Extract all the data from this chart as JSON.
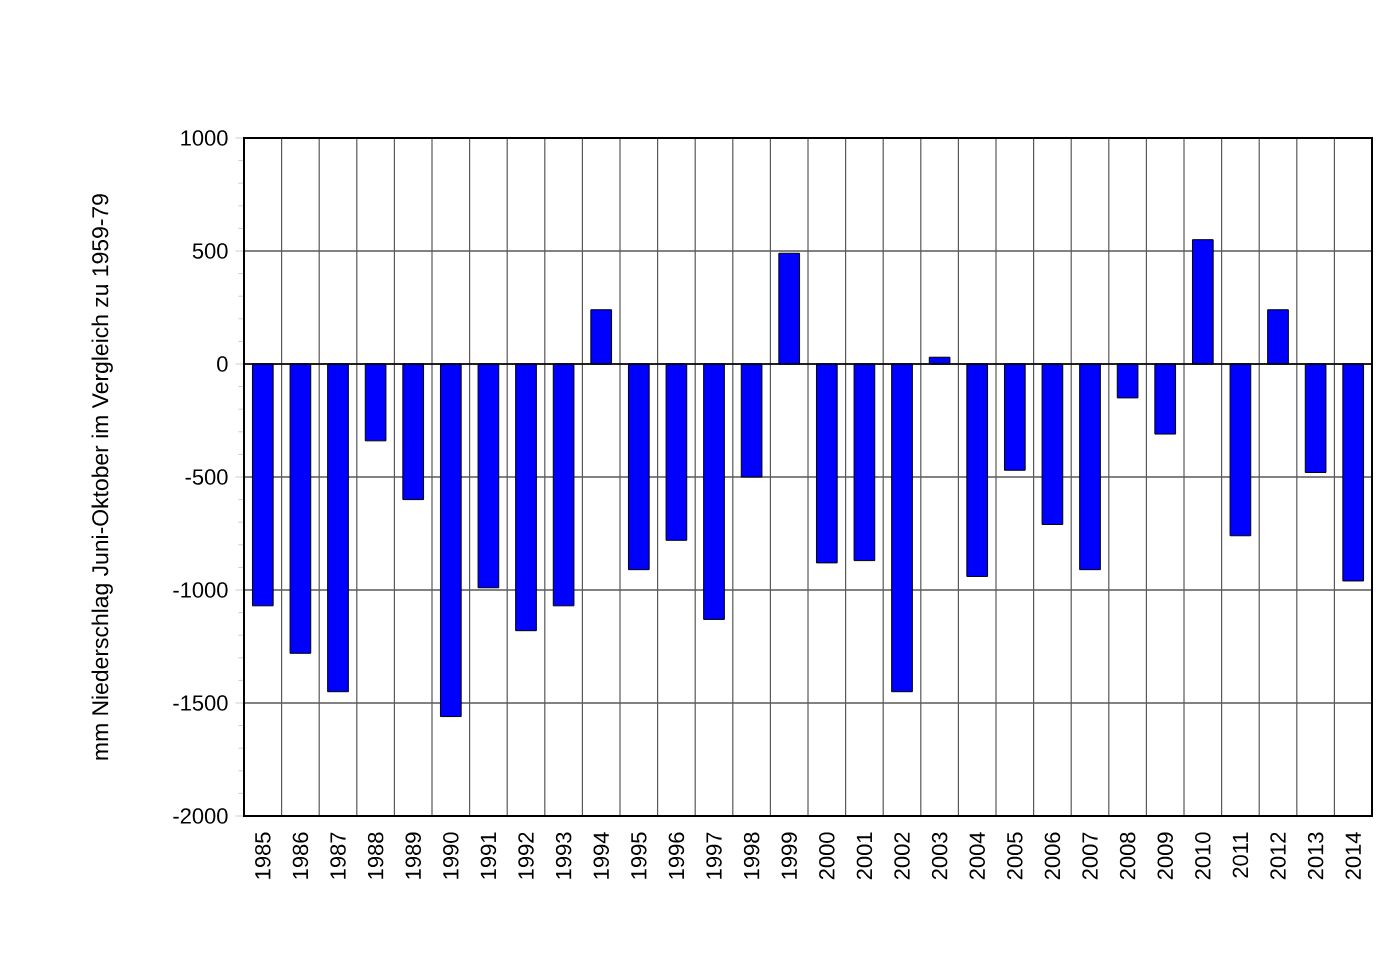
{
  "chart_data": {
    "type": "bar",
    "ylabel": "mm Niederschlag Juni-Oktober im Vergleich zu 1959-79",
    "categories": [
      "1985",
      "1986",
      "1987",
      "1988",
      "1989",
      "1990",
      "1991",
      "1992",
      "1993",
      "1994",
      "1995",
      "1996",
      "1997",
      "1998",
      "1999",
      "2000",
      "2001",
      "2002",
      "2003",
      "2004",
      "2005",
      "2006",
      "2007",
      "2008",
      "2009",
      "2010",
      "2011",
      "2012",
      "2013",
      "2014"
    ],
    "values": [
      -1070,
      -1280,
      -1450,
      -340,
      -600,
      -1560,
      -990,
      -1180,
      -1070,
      240,
      -910,
      -780,
      -1130,
      -500,
      490,
      -880,
      -870,
      -1450,
      30,
      -940,
      -470,
      -710,
      -910,
      -150,
      -310,
      550,
      -760,
      240,
      -480,
      -960
    ],
    "color": "#0000ff",
    "ylim": [
      -2000,
      1000
    ],
    "yticks": [
      -2000,
      -1500,
      -1000,
      -500,
      0,
      500,
      1000
    ],
    "grid": true
  }
}
